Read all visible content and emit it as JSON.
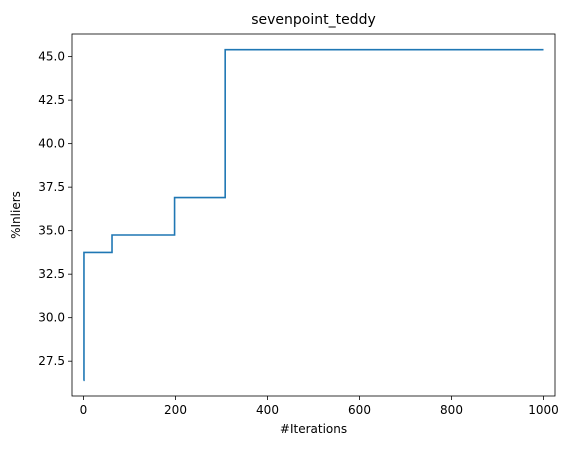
{
  "chart_data": {
    "type": "line",
    "title": "sevenpoint_teddy",
    "xlabel": "#Iterations",
    "ylabel": "%Inliers",
    "xlim": [
      -25,
      1025
    ],
    "ylim": [
      25.5,
      46.3
    ],
    "x_ticks": [
      0,
      200,
      400,
      600,
      800,
      1000
    ],
    "x_tick_labels": [
      "0",
      "200",
      "400",
      "600",
      "800",
      "1000"
    ],
    "y_ticks": [
      27.5,
      30.0,
      32.5,
      35.0,
      37.5,
      40.0,
      42.5,
      45.0
    ],
    "y_tick_labels": [
      "27.5",
      "30.0",
      "32.5",
      "35.0",
      "37.5",
      "40.0",
      "42.5",
      "45.0"
    ],
    "grid": false,
    "legend": "none",
    "series": [
      {
        "color": "#1f77b4",
        "step": true,
        "x": [
          0,
          1,
          62,
          198,
          308,
          1000
        ],
        "y": [
          26.4,
          33.75,
          34.75,
          36.9,
          45.4,
          45.4
        ]
      }
    ]
  }
}
